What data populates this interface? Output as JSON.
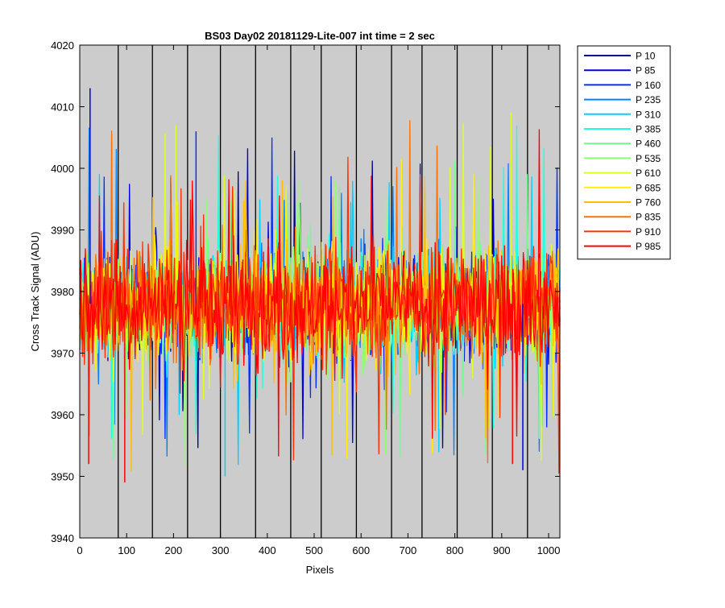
{
  "chart_data": {
    "type": "line",
    "title": "BS03 Day02 20181129-Lite-007 int time = 2 sec",
    "xlabel": "Pixels",
    "ylabel": "Cross Track Signal (ADU)",
    "xlim": [
      0,
      1024
    ],
    "ylim": [
      3940,
      4020
    ],
    "x_ticks": [
      0,
      100,
      200,
      300,
      400,
      500,
      600,
      700,
      800,
      900,
      1000
    ],
    "y_ticks": [
      3940,
      3950,
      3960,
      3970,
      3980,
      3990,
      4000,
      4010,
      4020
    ],
    "vertical_lines_x": [
      82,
      155,
      230,
      300,
      375,
      450,
      515,
      590,
      665,
      730,
      805,
      880,
      955
    ],
    "background_color": "#cccccc",
    "legend_position": "outside-right",
    "noise": {
      "mean": 3978,
      "typical_low": 3965,
      "typical_high": 3991,
      "min": 3949,
      "max": 4013
    },
    "series": [
      {
        "name": "P 10",
        "color": "#00008f"
      },
      {
        "name": "P 85",
        "color": "#0000df"
      },
      {
        "name": "P 160",
        "color": "#0030ff"
      },
      {
        "name": "P 235",
        "color": "#0080ff"
      },
      {
        "name": "P 310",
        "color": "#00cfff"
      },
      {
        "name": "P 385",
        "color": "#20ffdf"
      },
      {
        "name": "P 460",
        "color": "#70ff8f"
      },
      {
        "name": "P 535",
        "color": "#8fff70"
      },
      {
        "name": "P 610",
        "color": "#dfff20"
      },
      {
        "name": "P 685",
        "color": "#ffef00"
      },
      {
        "name": "P 760",
        "color": "#ffbf00"
      },
      {
        "name": "P 835",
        "color": "#ff7000"
      },
      {
        "name": "P 910",
        "color": "#ff3000"
      },
      {
        "name": "P 985",
        "color": "#ff0000"
      }
    ]
  }
}
